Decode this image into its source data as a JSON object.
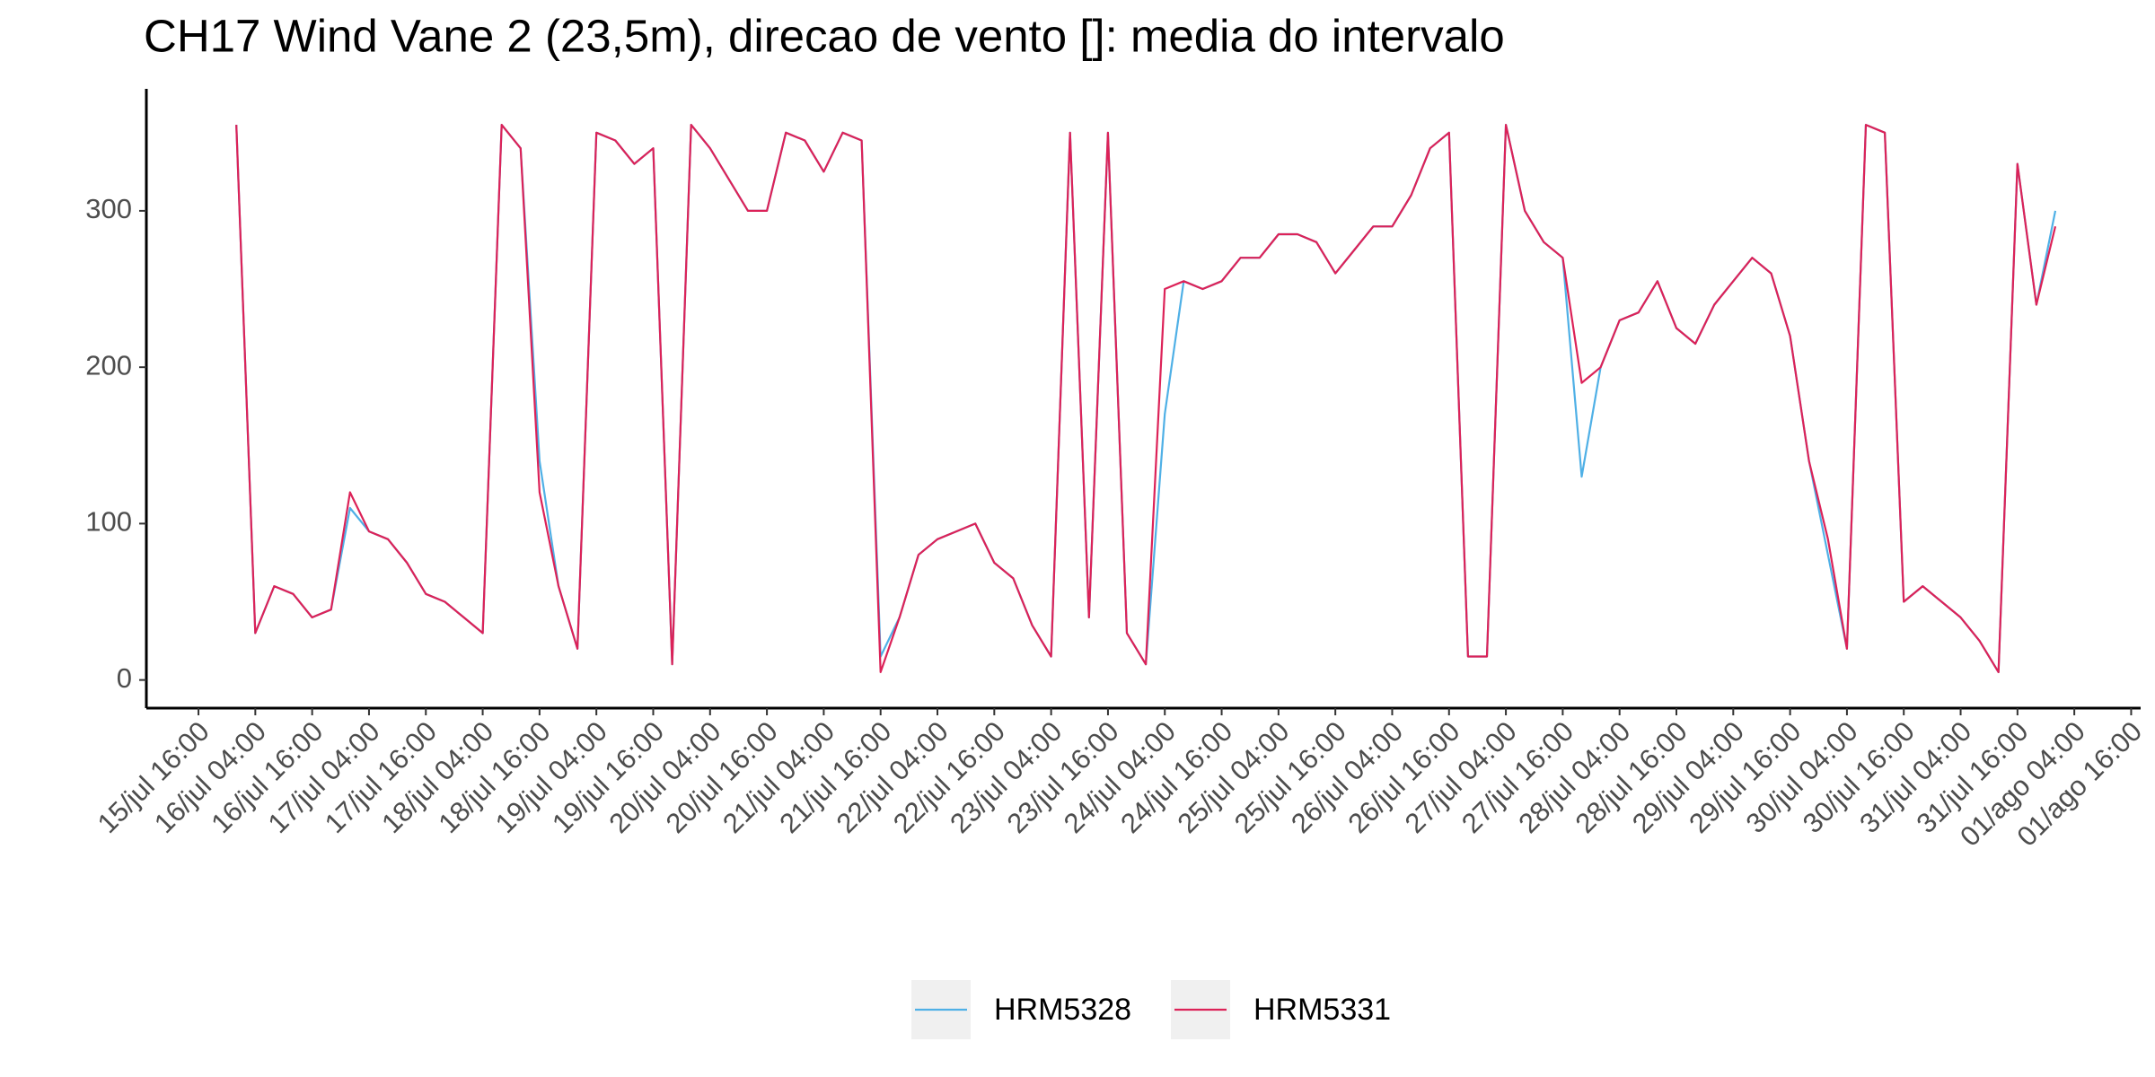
{
  "chart_data": {
    "type": "line",
    "title": "CH17 Wind Vane 2 (23,5m), direcao de vento []: media do intervalo",
    "x": [
      "16/jul 00:00",
      "16/jul 04:00",
      "16/jul 08:00",
      "16/jul 12:00",
      "16/jul 16:00",
      "16/jul 20:00",
      "17/jul 00:00",
      "17/jul 04:00",
      "17/jul 08:00",
      "17/jul 12:00",
      "17/jul 16:00",
      "17/jul 20:00",
      "18/jul 00:00",
      "18/jul 04:00",
      "18/jul 08:00",
      "18/jul 12:00",
      "18/jul 16:00",
      "18/jul 20:00",
      "19/jul 00:00",
      "19/jul 04:00",
      "19/jul 08:00",
      "19/jul 12:00",
      "19/jul 16:00",
      "19/jul 20:00",
      "20/jul 00:00",
      "20/jul 04:00",
      "20/jul 08:00",
      "20/jul 12:00",
      "20/jul 16:00",
      "20/jul 20:00",
      "21/jul 00:00",
      "21/jul 04:00",
      "21/jul 08:00",
      "21/jul 12:00",
      "21/jul 16:00",
      "21/jul 20:00",
      "22/jul 00:00",
      "22/jul 04:00",
      "22/jul 08:00",
      "22/jul 12:00",
      "22/jul 16:00",
      "22/jul 20:00",
      "23/jul 00:00",
      "23/jul 04:00",
      "23/jul 08:00",
      "23/jul 12:00",
      "23/jul 16:00",
      "23/jul 20:00",
      "24/jul 00:00",
      "24/jul 04:00",
      "24/jul 08:00",
      "24/jul 12:00",
      "24/jul 16:00",
      "24/jul 20:00",
      "25/jul 00:00",
      "25/jul 04:00",
      "25/jul 08:00",
      "25/jul 12:00",
      "25/jul 16:00",
      "25/jul 20:00",
      "26/jul 00:00",
      "26/jul 04:00",
      "26/jul 08:00",
      "26/jul 12:00",
      "26/jul 16:00",
      "26/jul 20:00",
      "27/jul 00:00",
      "27/jul 04:00",
      "27/jul 08:00",
      "27/jul 12:00",
      "27/jul 16:00",
      "27/jul 20:00",
      "28/jul 00:00",
      "28/jul 04:00",
      "28/jul 08:00",
      "28/jul 12:00",
      "28/jul 16:00",
      "28/jul 20:00",
      "29/jul 00:00",
      "29/jul 04:00",
      "29/jul 08:00",
      "29/jul 12:00",
      "29/jul 16:00",
      "29/jul 20:00",
      "30/jul 00:00",
      "30/jul 04:00",
      "30/jul 08:00",
      "30/jul 12:00",
      "30/jul 16:00",
      "30/jul 20:00",
      "31/jul 00:00",
      "31/jul 04:00",
      "31/jul 08:00",
      "31/jul 12:00",
      "31/jul 16:00",
      "31/jul 20:00",
      "01/ago 00:00"
    ],
    "series": [
      {
        "name": "HRM5328",
        "color": "#4fb0e6",
        "values": [
          355,
          30,
          60,
          55,
          40,
          45,
          110,
          95,
          90,
          75,
          55,
          50,
          40,
          30,
          355,
          340,
          140,
          60,
          20,
          350,
          345,
          330,
          340,
          10,
          355,
          340,
          320,
          300,
          300,
          350,
          345,
          325,
          350,
          345,
          15,
          40,
          80,
          90,
          95,
          100,
          75,
          65,
          35,
          15,
          350,
          40,
          350,
          30,
          10,
          170,
          255,
          250,
          255,
          270,
          270,
          285,
          285,
          280,
          260,
          275,
          290,
          290,
          310,
          340,
          350,
          15,
          15,
          355,
          300,
          280,
          270,
          130,
          200,
          230,
          235,
          255,
          225,
          215,
          240,
          255,
          270,
          260,
          220,
          140,
          80,
          20,
          355,
          350,
          50,
          60,
          50,
          40,
          25,
          5,
          330,
          240,
          300
        ]
      },
      {
        "name": "HRM5331",
        "color": "#dc2258",
        "values": [
          355,
          30,
          60,
          55,
          40,
          45,
          120,
          95,
          90,
          75,
          55,
          50,
          40,
          30,
          355,
          340,
          120,
          60,
          20,
          350,
          345,
          330,
          340,
          10,
          355,
          340,
          320,
          300,
          300,
          350,
          345,
          325,
          350,
          345,
          5,
          40,
          80,
          90,
          95,
          100,
          75,
          65,
          35,
          15,
          350,
          40,
          350,
          30,
          10,
          250,
          255,
          250,
          255,
          270,
          270,
          285,
          285,
          280,
          260,
          275,
          290,
          290,
          310,
          340,
          350,
          15,
          15,
          355,
          300,
          280,
          270,
          190,
          200,
          230,
          235,
          255,
          225,
          215,
          240,
          255,
          270,
          260,
          220,
          140,
          90,
          20,
          355,
          350,
          50,
          60,
          50,
          40,
          25,
          5,
          330,
          240,
          290
        ]
      }
    ],
    "xlim": [
      "15/jul 05:00",
      "01/ago 18:00"
    ],
    "xticks": [
      "15/jul 16:00",
      "16/jul 04:00",
      "16/jul 16:00",
      "17/jul 04:00",
      "17/jul 16:00",
      "18/jul 04:00",
      "18/jul 16:00",
      "19/jul 04:00",
      "19/jul 16:00",
      "20/jul 04:00",
      "20/jul 16:00",
      "21/jul 04:00",
      "21/jul 16:00",
      "22/jul 04:00",
      "22/jul 16:00",
      "23/jul 04:00",
      "23/jul 16:00",
      "24/jul 04:00",
      "24/jul 16:00",
      "25/jul 04:00",
      "25/jul 16:00",
      "26/jul 04:00",
      "26/jul 16:00",
      "27/jul 04:00",
      "27/jul 16:00",
      "28/jul 04:00",
      "28/jul 16:00",
      "29/jul 04:00",
      "29/jul 16:00",
      "30/jul 04:00",
      "30/jul 16:00",
      "31/jul 04:00",
      "31/jul 16:00",
      "01/ago 04:00",
      "01/ago 16:00"
    ],
    "ylim": [
      -18,
      378
    ],
    "yticks": [
      0,
      100,
      200,
      300
    ]
  }
}
